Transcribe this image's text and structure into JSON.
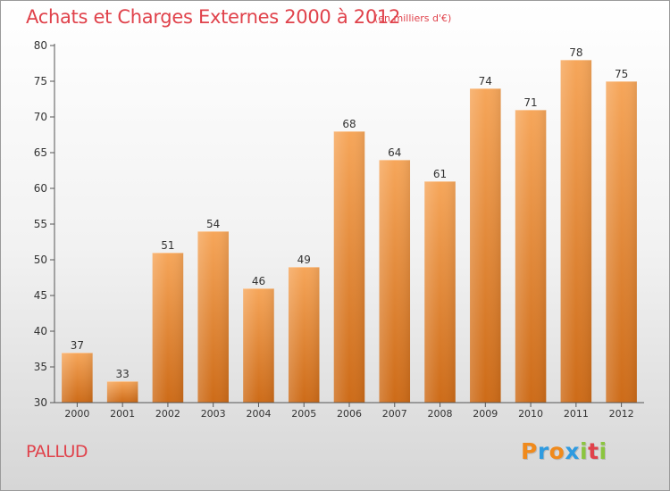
{
  "title": "Achats et Charges Externes 2000 à 2012",
  "subtitle": "(en milliers d'€)",
  "commune": "PALLUD",
  "logo": {
    "text": "Proxiti",
    "letters": [
      "P",
      "r",
      "o",
      "x",
      "i",
      "t",
      "i"
    ],
    "colors": [
      "#f08a1c",
      "#2f9be0",
      "#f08a1c",
      "#2f9be0",
      "#8bc53f",
      "#e0424b",
      "#8bc53f"
    ]
  },
  "colors": {
    "title": "#e0424b",
    "bar_top": "#f6a65a",
    "bar_bottom": "#cd6b18",
    "axis": "#555555"
  },
  "chart_data": {
    "type": "bar",
    "title": "Achats et Charges Externes 2000 à 2012",
    "subtitle": "(en milliers d'€)",
    "categories": [
      "2000",
      "2001",
      "2002",
      "2003",
      "2004",
      "2005",
      "2006",
      "2007",
      "2008",
      "2009",
      "2010",
      "2011",
      "2012"
    ],
    "values": [
      37,
      33,
      51,
      54,
      46,
      49,
      68,
      64,
      61,
      74,
      71,
      78,
      75
    ],
    "ylim": [
      30,
      80
    ],
    "yticks": [
      30,
      35,
      40,
      45,
      50,
      55,
      60,
      65,
      70,
      75,
      80
    ],
    "grid": false,
    "data_labels": true
  }
}
